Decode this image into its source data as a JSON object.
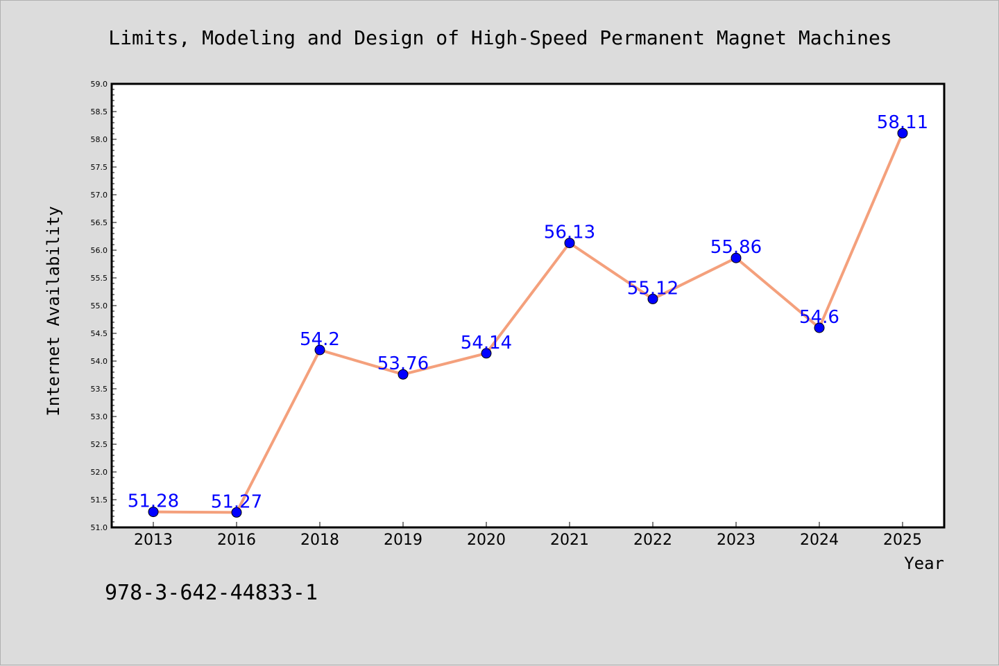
{
  "chart_data": {
    "type": "line",
    "title": "Limits, Modeling and Design of High-Speed Permanent Magnet Machines",
    "xlabel": "Year",
    "ylabel": "Internet Availability",
    "categories": [
      "2013",
      "2016",
      "2018",
      "2019",
      "2020",
      "2021",
      "2022",
      "2023",
      "2024",
      "2025"
    ],
    "series": [
      {
        "values": [
          51.28,
          51.27,
          54.2,
          53.76,
          54.14,
          56.13,
          55.12,
          55.86,
          54.6,
          58.11
        ],
        "data_labels": [
          "51.28",
          "51.27",
          "54.2",
          "53.76",
          "54.14",
          "56.13",
          "55.12",
          "55.86",
          "54.6",
          "58.11"
        ]
      }
    ],
    "ylim": [
      51.0,
      59.0
    ],
    "yticks": [
      "51.0",
      "51.5",
      "52.0",
      "52.5",
      "53.0",
      "53.5",
      "54.0",
      "54.5",
      "55.0",
      "55.5",
      "56.0",
      "56.5",
      "57.0",
      "57.5",
      "58.0",
      "58.5",
      "59.0"
    ],
    "grid": false,
    "legend": "none",
    "colors": {
      "line": "#f4a07c",
      "marker": "#0000ff",
      "label": "#0000ff",
      "background": "#dcdcdc",
      "plot_background": "#ffffff"
    }
  },
  "footer": {
    "isbn": "978-3-642-44833-1"
  }
}
